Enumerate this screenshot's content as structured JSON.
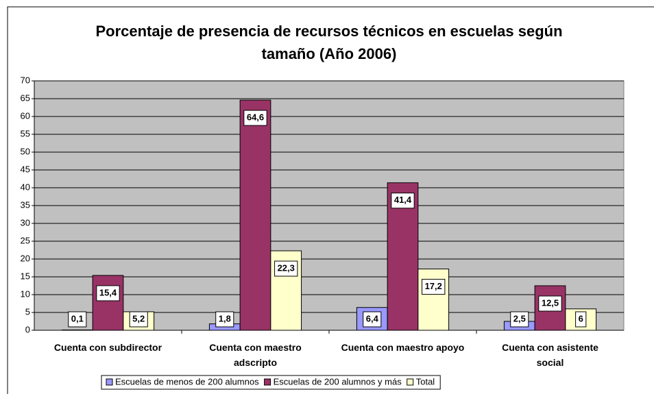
{
  "chart_data": {
    "type": "bar",
    "title": "Porcentaje de presencia de recursos técnicos en escuelas según tamaño (Año 2006)",
    "categories": [
      "Cuenta con subdirector",
      "Cuenta con maestro adscripto",
      "Cuenta con maestro apoyo",
      "Cuenta con asistente social"
    ],
    "series": [
      {
        "name": "Escuelas de menos de 200 alumnos",
        "color": "#9999ff",
        "values": [
          0.1,
          1.8,
          6.4,
          2.5
        ],
        "value_labels": [
          "0,1",
          "1,8",
          "6,4",
          "2,5"
        ]
      },
      {
        "name": "Escuelas de 200 alumnos y más",
        "color": "#993366",
        "values": [
          15.4,
          64.6,
          41.4,
          12.5
        ],
        "value_labels": [
          "15,4",
          "64,6",
          "41,4",
          "12,5"
        ]
      },
      {
        "name": "Total",
        "color": "#ffffcc",
        "values": [
          5.2,
          22.3,
          17.2,
          6
        ],
        "value_labels": [
          "5,2",
          "22,3",
          "17,2",
          "6"
        ]
      }
    ],
    "ylim": [
      0,
      70
    ],
    "yticks": [
      0,
      5,
      10,
      15,
      20,
      25,
      30,
      35,
      40,
      45,
      50,
      55,
      60,
      65,
      70
    ],
    "grid": true,
    "plot_background": "#c0c0c0",
    "legend": "bottom"
  }
}
